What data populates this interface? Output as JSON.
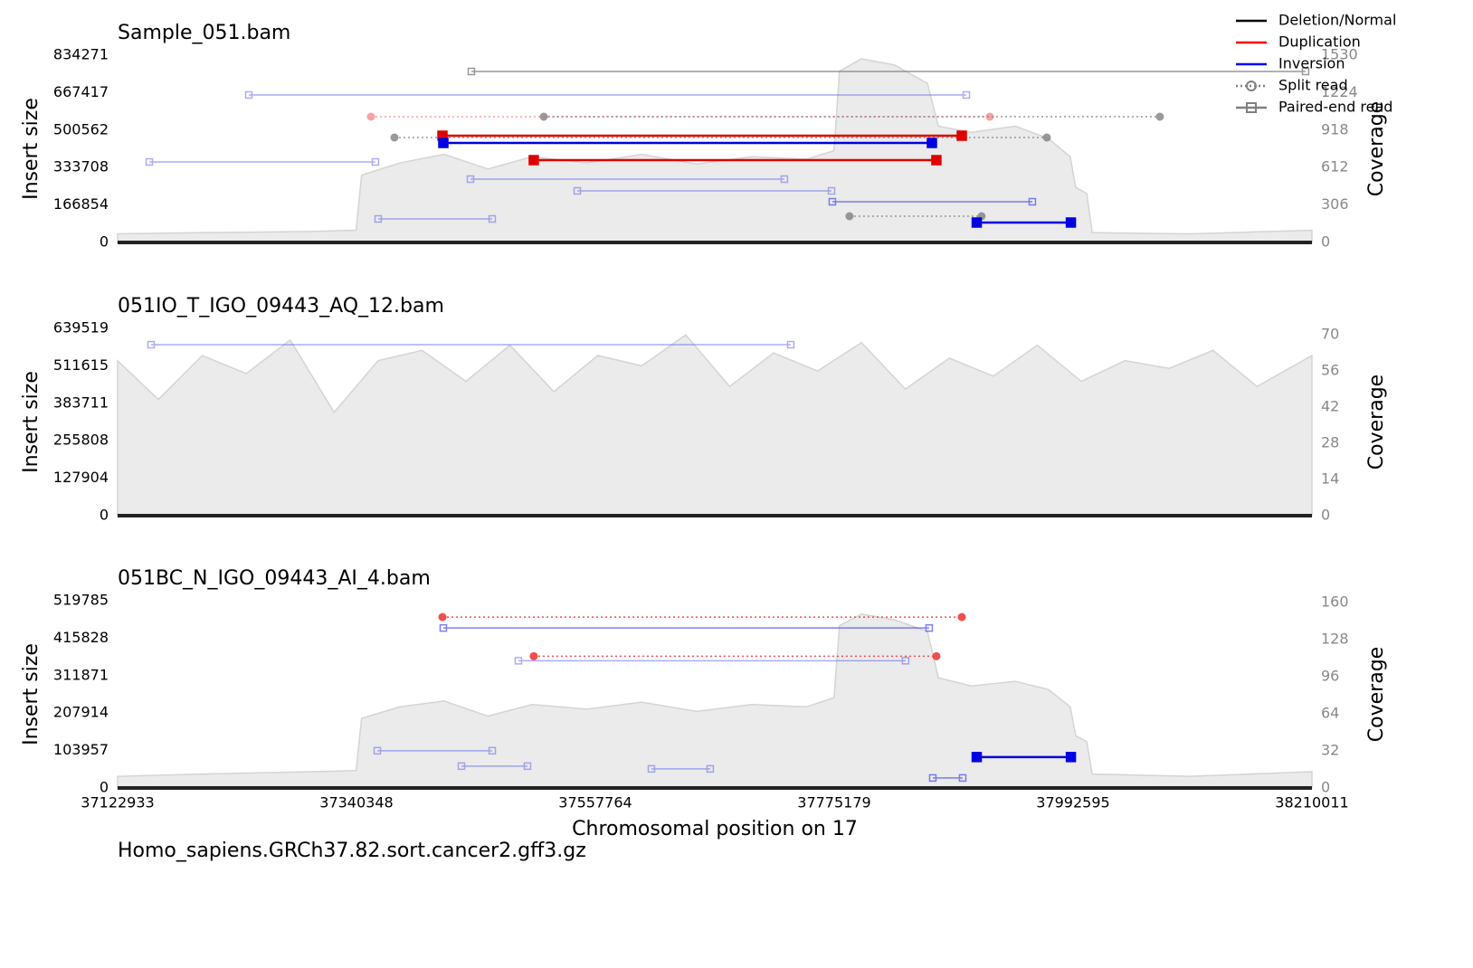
{
  "chart_data": [
    {
      "type": "samplot",
      "title": "Sample_051.bam",
      "ylabel": "Insert size",
      "y2label": "Coverage",
      "xlim": [
        37122933,
        38210011
      ],
      "ylim": [
        0,
        834271
      ],
      "yticks": [
        0,
        166854,
        333708,
        500562,
        667417,
        834271
      ],
      "y2lim": [
        0,
        1530
      ],
      "y2ticks": [
        0,
        306,
        612,
        918,
        1224,
        1530
      ],
      "coverage": {
        "x": [
          37122933,
          37200000,
          37300000,
          37340000,
          37345000,
          37380000,
          37420000,
          37460000,
          37500000,
          37550000,
          37600000,
          37650000,
          37700000,
          37750000,
          37775000,
          37780000,
          37800000,
          37830000,
          37860000,
          37870000,
          37900000,
          37940000,
          37970000,
          37990000,
          37995000,
          38005000,
          38010000,
          38100000,
          38210011
        ],
        "values": [
          70,
          80,
          90,
          100,
          550,
          650,
          720,
          600,
          700,
          650,
          720,
          640,
          700,
          680,
          750,
          1400,
          1500,
          1450,
          1300,
          950,
          900,
          950,
          850,
          700,
          450,
          400,
          80,
          70,
          100
        ]
      },
      "reads": [
        {
          "x": [
            37444920,
            38204180
          ],
          "y": 761700,
          "color": "#808080",
          "marker": "square",
          "alpha": 0.8
        },
        {
          "x": [
            37242340,
            37895400
          ],
          "y": 656900,
          "color": "#4a4af0",
          "marker": "square",
          "alpha": 0.45
        },
        {
          "x": [
            37353500,
            37916800
          ],
          "y": 560200,
          "color": "#f03030",
          "marker": "circle",
          "alpha": 0.45
        },
        {
          "x": [
            37510800,
            38071600
          ],
          "y": 560200,
          "color": "#808080",
          "marker": "circle",
          "alpha": 0.8
        },
        {
          "x": [
            37374900,
            37968700
          ],
          "y": 467500,
          "color": "#808080",
          "marker": "circle",
          "alpha": 0.8
        },
        {
          "x": [
            37418600,
            37891300
          ],
          "y": 475500,
          "color": "#e00000",
          "marker": "square",
          "alpha": 1
        },
        {
          "x": [
            37419400,
            37864100
          ],
          "y": 443300,
          "color": "#0000e0",
          "marker": "square",
          "alpha": 1
        },
        {
          "x": [
            37151750,
            37357600
          ],
          "y": 358700,
          "color": "#4a4af0",
          "marker": "square",
          "alpha": 0.45
        },
        {
          "x": [
            37501700,
            37868200
          ],
          "y": 366700,
          "color": "#e00000",
          "marker": "square",
          "alpha": 1
        },
        {
          "x": [
            37444100,
            37729800
          ],
          "y": 282100,
          "color": "#4a4af0",
          "marker": "square",
          "alpha": 0.45
        },
        {
          "x": [
            37541300,
            37772700
          ],
          "y": 229700,
          "color": "#4a4af0",
          "marker": "square",
          "alpha": 0.45
        },
        {
          "x": [
            37773500,
            37955500
          ],
          "y": 181400,
          "color": "#4a4af0",
          "marker": "square",
          "alpha": 0.7
        },
        {
          "x": [
            37789100,
            37909300
          ],
          "y": 116900,
          "color": "#808080",
          "marker": "circle",
          "alpha": 0.8
        },
        {
          "x": [
            37360100,
            37463900
          ],
          "y": 104800,
          "color": "#4a4af0",
          "marker": "square",
          "alpha": 0.45
        },
        {
          "x": [
            37904900,
            37990600
          ],
          "y": 88700,
          "color": "#0000e0",
          "marker": "square",
          "alpha": 1
        }
      ]
    },
    {
      "type": "samplot",
      "title": "051IO_T_IGO_09443_AQ_12.bam",
      "ylabel": "Insert size",
      "y2label": "Coverage",
      "xlim": [
        37122933,
        38210011
      ],
      "ylim": [
        0,
        639519
      ],
      "yticks": [
        0,
        127904,
        255808,
        383711,
        511615,
        639519
      ],
      "y2lim": [
        0,
        72.5
      ],
      "y2ticks": [
        0,
        14,
        28,
        42,
        56,
        70
      ],
      "coverage": {
        "x": [
          37122933,
          37160000,
          37200000,
          37240000,
          37280000,
          37320000,
          37360000,
          37400000,
          37440000,
          37480000,
          37520000,
          37560000,
          37600000,
          37640000,
          37680000,
          37720000,
          37760000,
          37800000,
          37840000,
          37880000,
          37920000,
          37960000,
          38000000,
          38040000,
          38080000,
          38120000,
          38160000,
          38210011
        ],
        "values": [
          60,
          45,
          62,
          55,
          68,
          40,
          60,
          64,
          52,
          66,
          48,
          62,
          58,
          70,
          50,
          63,
          56,
          67,
          49,
          61,
          54,
          66,
          52,
          60,
          57,
          64,
          50,
          62
        ]
      },
      "reads": [
        {
          "x": [
            37153400,
            37735600
          ],
          "y": 583800,
          "color": "#4a4af0",
          "marker": "square",
          "alpha": 0.45
        }
      ]
    },
    {
      "type": "samplot",
      "title": "051BC_N_IGO_09443_AI_4.bam",
      "ylabel": "Insert size",
      "y2label": "Coverage",
      "xlim": [
        37122933,
        38210011
      ],
      "ylim": [
        0,
        519785
      ],
      "yticks": [
        0,
        103957,
        207914,
        311871,
        415828,
        519785
      ],
      "y2lim": [
        0,
        161.5
      ],
      "y2ticks": [
        0,
        32,
        64,
        96,
        128,
        160
      ],
      "xticks": [
        37122933,
        37340348,
        37557764,
        37775179,
        37992595,
        38210011
      ],
      "xlabel": "Chromosomal position on 17",
      "coverage": {
        "x": [
          37122933,
          37200000,
          37300000,
          37340000,
          37345000,
          37380000,
          37420000,
          37460000,
          37500000,
          37550000,
          37600000,
          37650000,
          37700000,
          37750000,
          37775000,
          37780000,
          37800000,
          37830000,
          37860000,
          37870000,
          37900000,
          37940000,
          37970000,
          37990000,
          37995000,
          38005000,
          38010000,
          38100000,
          38210011
        ],
        "values": [
          10,
          12,
          14,
          15,
          60,
          70,
          75,
          62,
          72,
          68,
          74,
          66,
          72,
          70,
          78,
          140,
          150,
          145,
          135,
          95,
          88,
          92,
          85,
          70,
          45,
          40,
          12,
          10,
          14
        ]
      },
      "reads": [
        {
          "x": [
            37418600,
            37891300
          ],
          "y": 474300,
          "color": "#f03030",
          "marker": "circle",
          "alpha": 0.85
        },
        {
          "x": [
            37419400,
            37861600
          ],
          "y": 444000,
          "color": "#4a4af0",
          "marker": "square",
          "alpha": 0.7
        },
        {
          "x": [
            37501700,
            37868200
          ],
          "y": 365800,
          "color": "#f03030",
          "marker": "circle",
          "alpha": 0.85
        },
        {
          "x": [
            37487700,
            37840100
          ],
          "y": 353200,
          "color": "#4a4af0",
          "marker": "square",
          "alpha": 0.45
        },
        {
          "x": [
            37359300,
            37463900
          ],
          "y": 103400,
          "color": "#4a4af0",
          "marker": "square",
          "alpha": 0.45
        },
        {
          "x": [
            37904900,
            37990600
          ],
          "y": 85800,
          "color": "#0000e0",
          "marker": "square",
          "alpha": 1
        },
        {
          "x": [
            37435900,
            37496000
          ],
          "y": 60600,
          "color": "#4a4af0",
          "marker": "square",
          "alpha": 0.45
        },
        {
          "x": [
            37608800,
            37662300
          ],
          "y": 53000,
          "color": "#4a4af0",
          "marker": "square",
          "alpha": 0.45
        },
        {
          "x": [
            37864900,
            37892100
          ],
          "y": 27800,
          "color": "#4a4af0",
          "marker": "square",
          "alpha": 0.7
        }
      ]
    }
  ],
  "legend": [
    {
      "name": "Deletion/Normal",
      "color": "#000000",
      "style": "line"
    },
    {
      "name": "Duplication",
      "color": "#ff0000",
      "style": "line"
    },
    {
      "name": "Inversion",
      "color": "#0000ff",
      "style": "line"
    },
    {
      "name": "Split read",
      "color": "#808080",
      "style": "split"
    },
    {
      "name": "Paired-end read",
      "color": "#808080",
      "style": "paired"
    }
  ],
  "annotation": "Homo_sapiens.GRCh37.82.sort.cancer2.gff3.gz"
}
